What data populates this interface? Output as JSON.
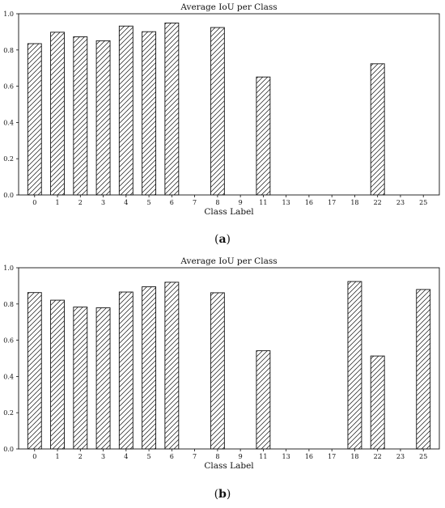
{
  "chart_data": [
    {
      "type": "bar",
      "title": "Average IoU per Class",
      "xlabel": "Class Label",
      "ylabel": "",
      "ylim": [
        0,
        1.0
      ],
      "yticks": [
        "0.0",
        "0.2",
        "0.4",
        "0.6",
        "0.8",
        "1.0"
      ],
      "categories": [
        "0",
        "1",
        "2",
        "3",
        "4",
        "5",
        "6",
        "7",
        "8",
        "9",
        "11",
        "13",
        "16",
        "17",
        "18",
        "22",
        "23",
        "25"
      ],
      "values": [
        0.835,
        0.898,
        0.873,
        0.851,
        0.932,
        0.901,
        0.949,
        0.0,
        0.924,
        0.0,
        0.651,
        0.0,
        0.0,
        0.0,
        0.0,
        0.724,
        0.0,
        0.0
      ],
      "grid": false,
      "hatch": "diagonal",
      "caption_letter": "a"
    },
    {
      "type": "bar",
      "title": "Average IoU per Class",
      "xlabel": "Class Label",
      "ylabel": "",
      "ylim": [
        0,
        1.0
      ],
      "yticks": [
        "0.0",
        "0.2",
        "0.4",
        "0.6",
        "0.8",
        "1.0"
      ],
      "categories": [
        "0",
        "1",
        "2",
        "3",
        "4",
        "5",
        "6",
        "7",
        "8",
        "9",
        "11",
        "13",
        "16",
        "17",
        "18",
        "22",
        "23",
        "25"
      ],
      "values": [
        0.863,
        0.821,
        0.783,
        0.779,
        0.866,
        0.895,
        0.92,
        0.0,
        0.862,
        0.0,
        0.542,
        0.0,
        0.0,
        0.0,
        0.924,
        0.513,
        0.0,
        0.88
      ],
      "grid": false,
      "hatch": "diagonal",
      "caption_letter": "b"
    }
  ]
}
